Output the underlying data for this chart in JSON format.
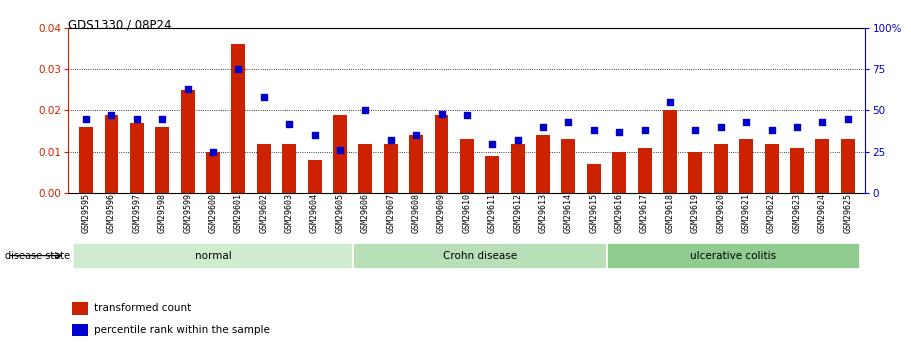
{
  "title": "GDS1330 / 08P24",
  "samples": [
    "GSM29595",
    "GSM29596",
    "GSM29597",
    "GSM29598",
    "GSM29599",
    "GSM29600",
    "GSM29601",
    "GSM29602",
    "GSM29603",
    "GSM29604",
    "GSM29605",
    "GSM29606",
    "GSM29607",
    "GSM29608",
    "GSM29609",
    "GSM29610",
    "GSM29611",
    "GSM29612",
    "GSM29613",
    "GSM29614",
    "GSM29615",
    "GSM29616",
    "GSM29617",
    "GSM29618",
    "GSM29619",
    "GSM29620",
    "GSM29621",
    "GSM29622",
    "GSM29623",
    "GSM29624",
    "GSM29625"
  ],
  "bar_values": [
    0.016,
    0.019,
    0.017,
    0.016,
    0.025,
    0.01,
    0.036,
    0.012,
    0.012,
    0.008,
    0.019,
    0.012,
    0.012,
    0.014,
    0.019,
    0.013,
    0.009,
    0.012,
    0.014,
    0.013,
    0.007,
    0.01,
    0.011,
    0.02,
    0.01,
    0.012,
    0.013,
    0.012,
    0.011,
    0.013,
    0.013
  ],
  "dot_values": [
    45,
    47,
    45,
    45,
    63,
    25,
    75,
    58,
    42,
    35,
    26,
    50,
    32,
    35,
    48,
    47,
    30,
    32,
    40,
    43,
    38,
    37,
    38,
    55,
    38,
    40,
    43,
    38,
    40,
    43,
    45
  ],
  "groups": [
    {
      "label": "normal",
      "start": 0,
      "end": 11,
      "color": "#d0ecd0"
    },
    {
      "label": "Crohn disease",
      "start": 11,
      "end": 21,
      "color": "#b8e0b8"
    },
    {
      "label": "ulcerative colitis",
      "start": 21,
      "end": 31,
      "color": "#90cc90"
    }
  ],
  "bar_color": "#cc2200",
  "dot_color": "#0000cc",
  "ylim_left": [
    0,
    0.04
  ],
  "ylim_right": [
    0,
    100
  ],
  "yticks_left": [
    0,
    0.01,
    0.02,
    0.03,
    0.04
  ],
  "yticks_right": [
    0,
    25,
    50,
    75,
    100
  ],
  "legend_items": [
    "transformed count",
    "percentile rank within the sample"
  ],
  "disease_state_label": "disease state"
}
